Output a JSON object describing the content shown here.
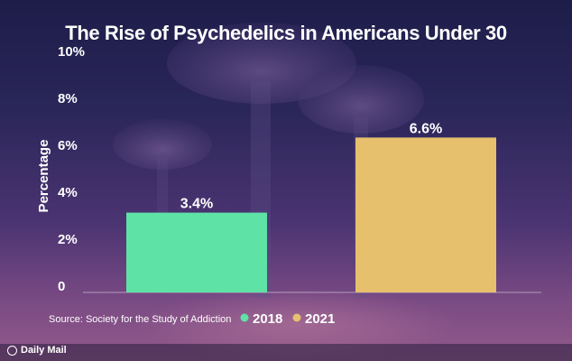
{
  "chart_data": {
    "type": "bar",
    "title": "The Rise of Psychedelics in Americans Under 30",
    "ylabel": "Percentage",
    "xlabel": "",
    "ylim": [
      0,
      10
    ],
    "yticks": [
      {
        "value": 0,
        "label": "0"
      },
      {
        "value": 2,
        "label": "2%"
      },
      {
        "value": 4,
        "label": "4%"
      },
      {
        "value": 6,
        "label": "6%"
      },
      {
        "value": 8,
        "label": "8%"
      },
      {
        "value": 10,
        "label": "10%"
      }
    ],
    "categories": [
      "2018",
      "2021"
    ],
    "values": [
      3.4,
      6.6
    ],
    "value_labels": [
      "3.4%",
      "6.6%"
    ],
    "colors": [
      "#5fe2a6",
      "#e6c06d"
    ],
    "legend": [
      {
        "label": "2018",
        "color": "#5fe2a6"
      },
      {
        "label": "2021",
        "color": "#e6c06d"
      }
    ],
    "legend_position": "bottom",
    "grid": false
  },
  "source": "Source: Society for the Study of Addiction",
  "logo": "Daily Mail"
}
